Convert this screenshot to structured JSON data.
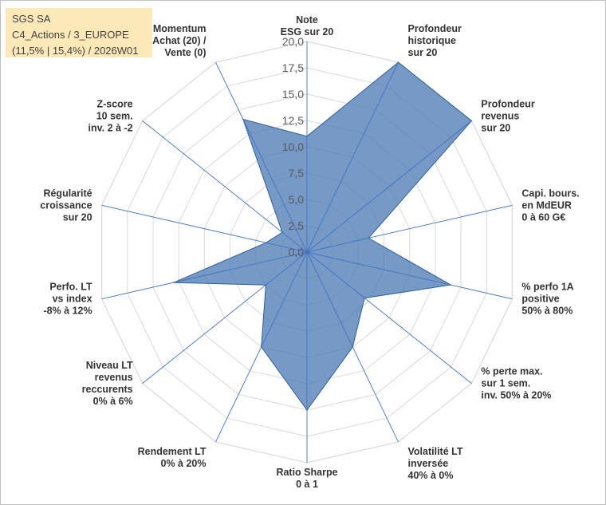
{
  "title_box": {
    "line1": "SGS SA",
    "line2": "C4_Actions / 3_EUROPE",
    "line3": "(11,5% | 15,4%) / 2026W01",
    "background": "#fde9b8"
  },
  "chart_data": {
    "type": "radar",
    "rmin": 0,
    "rmax": 20,
    "tick_step": 2.5,
    "tick_labels": [
      "0,0",
      "2,5",
      "5,0",
      "7,5",
      "10,0",
      "12,5",
      "15,0",
      "17,5",
      "20,0"
    ],
    "grid": true,
    "categories": [
      [
        "Note",
        "ESG sur 20"
      ],
      [
        "Profondeur",
        "historique",
        "sur 20"
      ],
      [
        "Profondeur",
        "revenus",
        "sur 20"
      ],
      [
        "Capi. bours.",
        "en MdEUR",
        "0 à 60 G€"
      ],
      [
        "% perfo 1A",
        "positive",
        "50% à 80%"
      ],
      [
        "% perte max.",
        "sur 1 sem.",
        "inv. 50% à 20%"
      ],
      [
        "Volatilité LT",
        "inversée",
        "40% à 0%"
      ],
      [
        "Ratio Sharpe",
        "0 à 1"
      ],
      [
        "Rendement LT",
        "0% à 20%"
      ],
      [
        "Niveau LT",
        "revenus",
        "reccurents",
        "0% à 6%"
      ],
      [
        "Perfo. LT",
        "vs index",
        "-8% à 12%"
      ],
      [
        "Régularité",
        "croissance",
        "sur 20"
      ],
      [
        "Z-score",
        "10 sem.",
        "inv. 2 à -2"
      ],
      [
        "Momentum",
        "Achat (20) /",
        "Vente (0)"
      ]
    ],
    "series": [
      {
        "name": "SGS SA",
        "values": [
          11.0,
          20.0,
          20.0,
          6.0,
          14.0,
          7.0,
          10.0,
          15.0,
          10.0,
          5.0,
          13.0,
          4.0,
          3.0,
          14.0
        ],
        "fill": "#4f7cb5",
        "fill_opacity": 0.78,
        "stroke": "#2f5f99"
      }
    ],
    "colors": {
      "grid": "#d9d9d9",
      "spoke": "#4472c4"
    }
  }
}
